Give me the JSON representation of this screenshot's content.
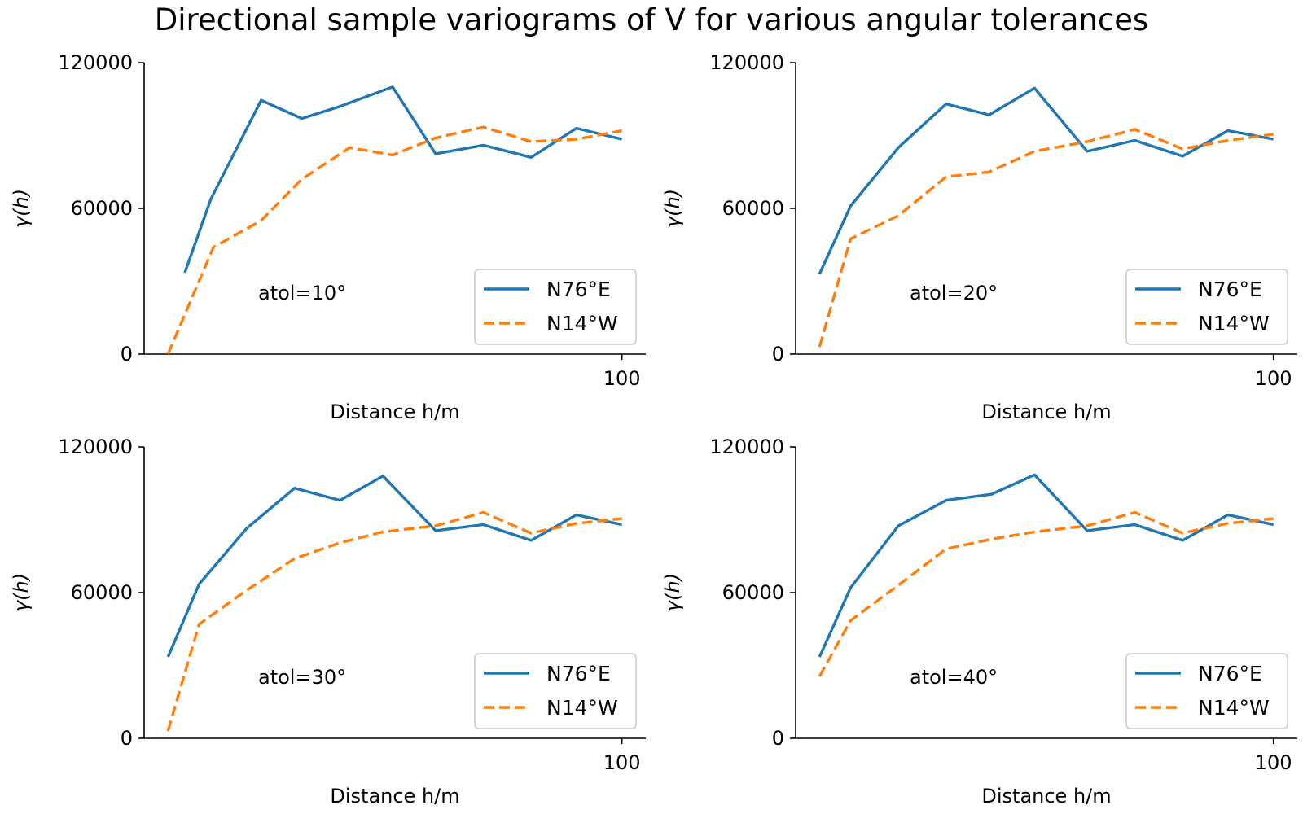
{
  "figure": {
    "title": "Directional sample variograms of V for various angular tolerances"
  },
  "chart_data": [
    {
      "type": "line",
      "annotation": "atol=10°",
      "xlabel": "Distance h/m",
      "ylabel": "γ(h)",
      "xticks": [
        100
      ],
      "yticks": [
        0,
        60000,
        120000
      ],
      "xlim": [
        0,
        105
      ],
      "ylim": [
        0,
        120000
      ],
      "grid": false,
      "legend": "lower-right",
      "series": [
        {
          "name": "N76°E",
          "color": "#1f77b4",
          "dash": "solid",
          "x": [
            8.5,
            14,
            24.5,
            33,
            41,
            52,
            61,
            71,
            81,
            90.5,
            100
          ],
          "y": [
            33500,
            64000,
            104500,
            97000,
            102000,
            110000,
            82500,
            86000,
            81000,
            93000,
            88500
          ]
        },
        {
          "name": "N14°W",
          "color": "#ff7f0e",
          "dash": "dashed",
          "x": [
            5,
            14.5,
            24.5,
            33,
            43,
            52,
            61,
            71,
            81,
            90.5,
            100
          ],
          "y": [
            0,
            44000,
            55000,
            72000,
            85000,
            82000,
            89000,
            93500,
            87500,
            88500,
            92000
          ]
        }
      ]
    },
    {
      "type": "line",
      "annotation": "atol=20°",
      "xlabel": "Distance h/m",
      "ylabel": "γ(h)",
      "xticks": [
        100
      ],
      "yticks": [
        0,
        60000,
        120000
      ],
      "xlim": [
        0,
        105
      ],
      "ylim": [
        0,
        120000
      ],
      "grid": false,
      "legend": "lower-right",
      "series": [
        {
          "name": "N76°E",
          "color": "#1f77b4",
          "dash": "solid",
          "x": [
            5,
            11.5,
            21.5,
            31.5,
            40.5,
            50,
            61,
            71,
            81,
            90.5,
            100
          ],
          "y": [
            33000,
            61000,
            85000,
            103000,
            98500,
            109500,
            83500,
            88000,
            81500,
            92000,
            88500
          ]
        },
        {
          "name": "N14°W",
          "color": "#ff7f0e",
          "dash": "dashed",
          "x": [
            5,
            11.5,
            21.5,
            31.5,
            40.5,
            50,
            61,
            71,
            81,
            90.5,
            100
          ],
          "y": [
            3000,
            47500,
            57000,
            73000,
            75000,
            83500,
            87500,
            92500,
            84500,
            88000,
            90500
          ]
        }
      ]
    },
    {
      "type": "line",
      "annotation": "atol=30°",
      "xlabel": "Distance h/m",
      "ylabel": "γ(h)",
      "xticks": [
        100
      ],
      "yticks": [
        0,
        60000,
        120000
      ],
      "xlim": [
        0,
        105
      ],
      "ylim": [
        0,
        120000
      ],
      "grid": false,
      "legend": "lower-right",
      "series": [
        {
          "name": "N76°E",
          "color": "#1f77b4",
          "dash": "solid",
          "x": [
            5,
            11.5,
            21.5,
            31.5,
            41,
            50,
            61,
            71,
            81,
            90.5,
            100
          ],
          "y": [
            33500,
            63500,
            86500,
            103000,
            98000,
            108000,
            85500,
            88000,
            81500,
            92000,
            88000
          ]
        },
        {
          "name": "N14°W",
          "color": "#ff7f0e",
          "dash": "dashed",
          "x": [
            5,
            11.5,
            21.5,
            31.5,
            41,
            50,
            61,
            71,
            81,
            90.5,
            100
          ],
          "y": [
            3000,
            47000,
            61000,
            74000,
            80500,
            85000,
            87500,
            93000,
            84500,
            88500,
            90500
          ]
        }
      ]
    },
    {
      "type": "line",
      "annotation": "atol=40°",
      "xlabel": "Distance h/m",
      "ylabel": "γ(h)",
      "xticks": [
        100
      ],
      "yticks": [
        0,
        60000,
        120000
      ],
      "xlim": [
        0,
        105
      ],
      "ylim": [
        0,
        120000
      ],
      "grid": false,
      "legend": "lower-right",
      "series": [
        {
          "name": "N76°E",
          "color": "#1f77b4",
          "dash": "solid",
          "x": [
            5,
            11.5,
            21.5,
            31.5,
            41,
            50,
            61,
            71,
            81,
            90.5,
            100
          ],
          "y": [
            33500,
            62000,
            87500,
            98000,
            100500,
            108500,
            85500,
            88000,
            81500,
            92000,
            88000
          ]
        },
        {
          "name": "N14°W",
          "color": "#ff7f0e",
          "dash": "dashed",
          "x": [
            5,
            11.5,
            21.5,
            31.5,
            41,
            50,
            61,
            71,
            81,
            90.5,
            100
          ],
          "y": [
            25500,
            48500,
            63000,
            78000,
            82000,
            85000,
            87500,
            93000,
            84500,
            88500,
            90500
          ]
        }
      ]
    }
  ]
}
